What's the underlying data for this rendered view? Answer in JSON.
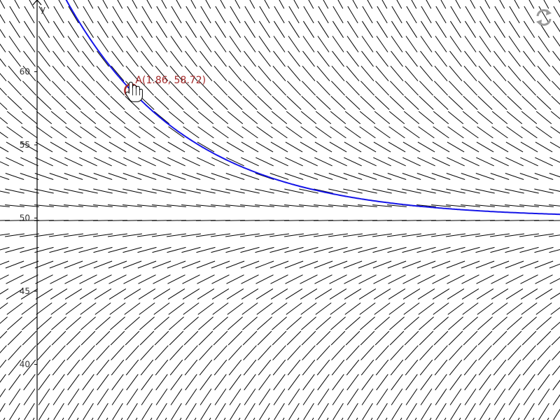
{
  "app": {
    "view": "Graphics"
  },
  "axes": {
    "y_label": "y",
    "y_ticks": [
      {
        "value": 60,
        "label": "60"
      },
      {
        "value": 55,
        "label": "55"
      },
      {
        "value": 50,
        "label": "50"
      },
      {
        "value": 45,
        "label": "45"
      },
      {
        "value": 40,
        "label": "40"
      }
    ],
    "y_range": [
      36.2,
      64.9
    ],
    "x_range": [
      -2.65,
      16.6
    ]
  },
  "slope_field": {
    "equation": "y' = -k (y - 50)",
    "k": 0.24,
    "equilibrium": 50,
    "color": "#000000"
  },
  "solution_curve": {
    "type": "y = 50 + (y0 - 50) e^{-k (x - x0)}",
    "color": "#1515e8",
    "through_point": "A"
  },
  "point": {
    "name": "A",
    "x": 1.86,
    "y": 58.72,
    "label": "A(1.86, 58.72)",
    "color": "#a52a2a"
  },
  "cursor": "hand-pointer-icon",
  "reset_icon": "reset-icon"
}
